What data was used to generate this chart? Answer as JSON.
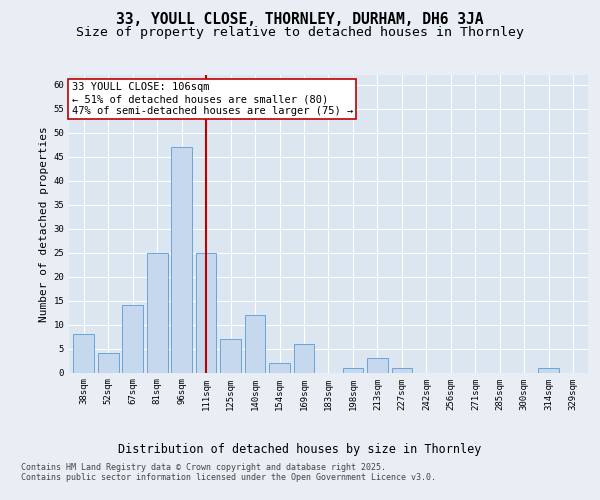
{
  "title": "33, YOULL CLOSE, THORNLEY, DURHAM, DH6 3JA",
  "subtitle": "Size of property relative to detached houses in Thornley",
  "xlabel": "Distribution of detached houses by size in Thornley",
  "ylabel": "Number of detached properties",
  "categories": [
    "38sqm",
    "52sqm",
    "67sqm",
    "81sqm",
    "96sqm",
    "111sqm",
    "125sqm",
    "140sqm",
    "154sqm",
    "169sqm",
    "183sqm",
    "198sqm",
    "213sqm",
    "227sqm",
    "242sqm",
    "256sqm",
    "271sqm",
    "285sqm",
    "300sqm",
    "314sqm",
    "329sqm"
  ],
  "values": [
    8,
    4,
    14,
    25,
    47,
    25,
    7,
    12,
    2,
    6,
    0,
    1,
    3,
    1,
    0,
    0,
    0,
    0,
    0,
    1,
    0
  ],
  "bar_color": "#c5d8ed",
  "bar_edge_color": "#5b9bd5",
  "vline_index": 5,
  "vline_color": "#c00000",
  "annotation_text": "33 YOULL CLOSE: 106sqm\n← 51% of detached houses are smaller (80)\n47% of semi-detached houses are larger (75) →",
  "annotation_box_color": "white",
  "annotation_box_edge_color": "#c00000",
  "ylim": [
    0,
    62
  ],
  "yticks": [
    0,
    5,
    10,
    15,
    20,
    25,
    30,
    35,
    40,
    45,
    50,
    55,
    60
  ],
  "bg_color": "#e8eef4",
  "plot_bg_color": "#dce6f0",
  "grid_color": "white",
  "footer_text": "Contains HM Land Registry data © Crown copyright and database right 2025.\nContains public sector information licensed under the Open Government Licence v3.0.",
  "title_fontsize": 10.5,
  "subtitle_fontsize": 9.5,
  "ylabel_fontsize": 8,
  "xlabel_fontsize": 8.5,
  "tick_fontsize": 6.5,
  "annotation_fontsize": 7.5,
  "footer_fontsize": 6
}
